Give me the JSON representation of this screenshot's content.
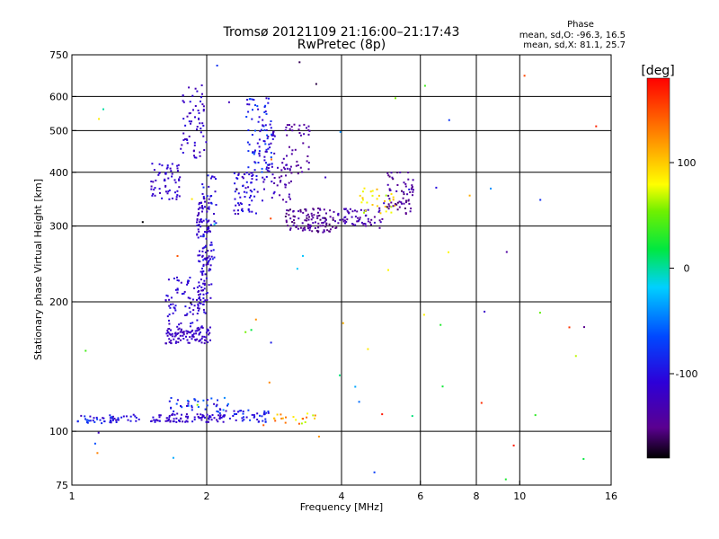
{
  "chart_data": {
    "type": "scatter",
    "title": "Tromsø 20121109 21:16:00–21:17:43",
    "subtitle": "RwPretec (8p)",
    "xlabel": "Frequency [MHz]",
    "ylabel": "Stationary phase Virtual Height [km]",
    "x_scale": "log",
    "y_scale": "log",
    "xlim": [
      1,
      16
    ],
    "ylim": [
      75,
      750
    ],
    "x_ticks": [
      1,
      2,
      4,
      6,
      8,
      10,
      16
    ],
    "x_gridlines": [
      2,
      4,
      6,
      8,
      10
    ],
    "y_ticks": [
      75,
      100,
      200,
      300,
      400,
      500,
      600,
      750
    ],
    "y_gridlines": [
      100,
      200,
      300,
      400,
      500,
      600
    ],
    "grid": true,
    "color_scale": {
      "label": "[deg]",
      "range": [
        -180,
        180
      ],
      "ticks": [
        100,
        0,
        -100
      ],
      "colormap": "rainbow"
    },
    "stats": {
      "heading": "Phase",
      "o_mode": "mean, sd,O: -96.3, 16.5",
      "x_mode": "mean, sd,X: 81.1, 25.7"
    },
    "clusters": [
      {
        "f": [
          1.03,
          1.27
        ],
        "h": [
          104,
          109
        ],
        "n": 40,
        "phase": [
          -130,
          -60
        ]
      },
      {
        "f": [
          1.27,
          1.45
        ],
        "h": [
          105,
          110
        ],
        "n": 12,
        "phase": [
          -120,
          -90
        ]
      },
      {
        "f": [
          1.5,
          2.2
        ],
        "h": [
          105,
          110
        ],
        "n": 90,
        "phase": [
          -130,
          -100
        ]
      },
      {
        "f": [
          1.65,
          2.25
        ],
        "h": [
          110,
          120
        ],
        "n": 40,
        "phase": [
          -120,
          -40
        ]
      },
      {
        "f": [
          2.25,
          2.75
        ],
        "h": [
          105,
          112
        ],
        "n": 40,
        "phase": [
          -125,
          -70
        ]
      },
      {
        "f": [
          1.62,
          2.05
        ],
        "h": [
          160,
          175
        ],
        "n": 100,
        "phase": [
          -130,
          -110
        ]
      },
      {
        "f": [
          1.62,
          2.0
        ],
        "h": [
          175,
          230
        ],
        "n": 80,
        "phase": [
          -125,
          -95
        ]
      },
      {
        "f": [
          1.9,
          2.05
        ],
        "h": [
          200,
          350
        ],
        "n": 120,
        "phase": [
          -130,
          -100
        ]
      },
      {
        "f": [
          1.95,
          2.1
        ],
        "h": [
          250,
          400
        ],
        "n": 40,
        "phase": [
          -120,
          -80
        ]
      },
      {
        "f": [
          1.5,
          1.75
        ],
        "h": [
          345,
          420
        ],
        "n": 60,
        "phase": [
          -130,
          -100
        ]
      },
      {
        "f": [
          1.75,
          2.0
        ],
        "h": [
          430,
          640
        ],
        "n": 60,
        "phase": [
          -130,
          -100
        ]
      },
      {
        "f": [
          2.3,
          2.6
        ],
        "h": [
          320,
          400
        ],
        "n": 60,
        "phase": [
          -130,
          -90
        ]
      },
      {
        "f": [
          2.45,
          2.8
        ],
        "h": [
          400,
          600
        ],
        "n": 70,
        "phase": [
          -120,
          -60
        ]
      },
      {
        "f": [
          2.6,
          2.85
        ],
        "h": [
          330,
          520
        ],
        "n": 40,
        "phase": [
          -130,
          -100
        ]
      },
      {
        "f": [
          2.8,
          3.1
        ],
        "h": [
          340,
          420
        ],
        "n": 30,
        "phase": [
          -150,
          -120
        ]
      },
      {
        "f": [
          2.95,
          3.4
        ],
        "h": [
          395,
          520
        ],
        "n": 40,
        "phase": [
          -150,
          -130
        ]
      },
      {
        "f": [
          3.0,
          3.9
        ],
        "h": [
          290,
          330
        ],
        "n": 110,
        "phase": [
          -160,
          -130
        ]
      },
      {
        "f": [
          3.9,
          5.0
        ],
        "h": [
          300,
          330
        ],
        "n": 60,
        "phase": [
          -150,
          -120
        ]
      },
      {
        "f": [
          4.4,
          5.3
        ],
        "h": [
          320,
          370
        ],
        "n": 30,
        "phase": [
          60,
          110
        ]
      },
      {
        "f": [
          5.0,
          5.8
        ],
        "h": [
          320,
          400
        ],
        "n": 60,
        "phase": [
          -160,
          -130
        ]
      },
      {
        "f": [
          2.8,
          3.5
        ],
        "h": [
          104,
          110
        ],
        "n": 20,
        "phase": [
          60,
          150
        ]
      },
      {
        "f": [
          1.0,
          16.0
        ],
        "h": [
          75,
          750
        ],
        "n": 70,
        "phase": [
          -180,
          180
        ]
      }
    ]
  }
}
